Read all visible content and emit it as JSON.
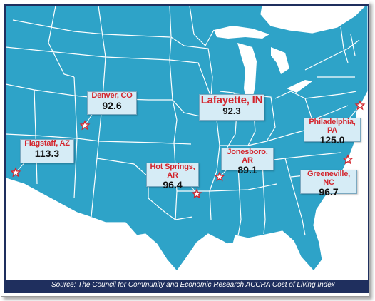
{
  "colors": {
    "land": "#2ea3c8",
    "border": "#ffffff",
    "star_fill": "#ffffff",
    "star_stroke": "#d3262e",
    "city_text": "#d3262e",
    "box_fill": "#d6ecf6",
    "source_bar": "#1f2f5e"
  },
  "markers": [
    {
      "city": "Denver, CO",
      "value": "92.6"
    },
    {
      "city": "Lafayette, IN",
      "value": "92.3"
    },
    {
      "city": "Flagstaff, AZ",
      "value": "113.3"
    },
    {
      "city": "Philadelphia, PA",
      "value": "125.0"
    },
    {
      "city": "Jonesboro, AR",
      "value": "89.1"
    },
    {
      "city": "Hot Springs, AR",
      "value": "96.4"
    },
    {
      "city": "Greeneville, NC",
      "value": "96.7"
    }
  ],
  "source": "Source: The Council for Community and Economic Research ACCRA Cost of Living Index"
}
